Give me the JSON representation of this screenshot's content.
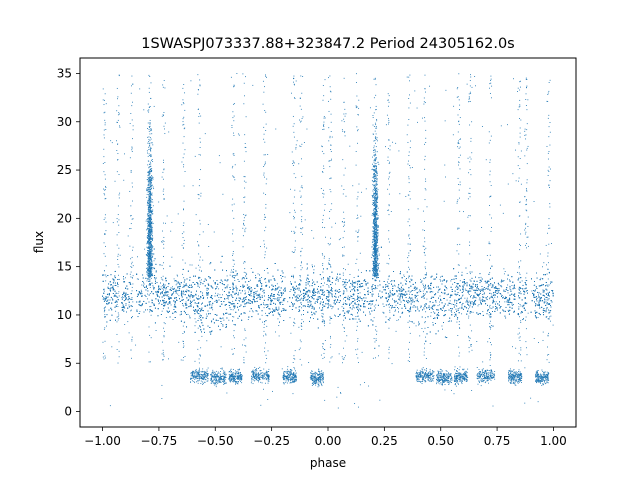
{
  "chart_data": {
    "type": "scatter",
    "title": "1SWASPJ073337.88+323847.2 Period 24305162.0s",
    "xlabel": "phase",
    "ylabel": "flux",
    "xlim": [
      -1.1,
      1.1
    ],
    "ylim": [
      -1.6,
      36.6
    ],
    "xticks": [
      -1.0,
      -0.75,
      -0.5,
      -0.25,
      0.0,
      0.25,
      0.5,
      0.75,
      1.0
    ],
    "xtick_labels": [
      "−1.00",
      "−0.75",
      "−0.50",
      "−0.25",
      "0.00",
      "0.25",
      "0.50",
      "0.75",
      "1.00"
    ],
    "yticks": [
      0,
      5,
      10,
      15,
      20,
      25,
      30,
      35
    ],
    "ytick_labels": [
      "0",
      "5",
      "10",
      "15",
      "20",
      "25",
      "30",
      "35"
    ],
    "grid": false,
    "legend": "none",
    "point_color": "#1f77b4",
    "series": [
      {
        "description_values": "phase-folded light curve, main band",
        "band_center": 12.0,
        "band_halfwidth": 2.0,
        "x_range": [
          -1.0,
          1.0
        ]
      }
    ],
    "sample_points": {
      "x": [
        -0.99,
        -0.95,
        -0.9,
        -0.85,
        -0.8,
        -0.79,
        -0.75,
        -0.7,
        -0.65,
        -0.6,
        -0.55,
        -0.5,
        -0.45,
        -0.4,
        -0.35,
        -0.3,
        -0.25,
        -0.2,
        -0.15,
        -0.1,
        -0.05,
        0.0,
        0.05,
        0.1,
        0.15,
        0.2,
        0.21,
        0.25,
        0.3,
        0.35,
        0.4,
        0.45,
        0.5,
        0.55,
        0.6,
        0.65,
        0.7,
        0.75,
        0.8,
        0.85,
        0.9,
        0.95,
        0.98
      ],
      "y": [
        11.5,
        12.0,
        11.2,
        12.5,
        20.0,
        27.0,
        13.5,
        12.8,
        12.4,
        12.0,
        11.6,
        11.0,
        11.8,
        12.2,
        12.6,
        12.0,
        12.2,
        11.8,
        12.4,
        12.1,
        11.9,
        11.0,
        12.3,
        12.0,
        12.5,
        20.5,
        27.5,
        13.2,
        12.6,
        12.3,
        12.0,
        11.4,
        11.0,
        11.6,
        12.1,
        12.3,
        12.5,
        12.0,
        12.3,
        12.0,
        12.1,
        12.5,
        12.2
      ]
    },
    "low_clusters": [
      {
        "x_range": [
          -0.61,
          -0.53
        ],
        "y_center": 3.7
      },
      {
        "x_range": [
          -0.52,
          -0.45
        ],
        "y_center": 3.5
      },
      {
        "x_range": [
          -0.44,
          -0.38
        ],
        "y_center": 3.6
      },
      {
        "x_range": [
          -0.34,
          -0.26
        ],
        "y_center": 3.7
      },
      {
        "x_range": [
          -0.2,
          -0.14
        ],
        "y_center": 3.6
      },
      {
        "x_range": [
          -0.08,
          -0.02
        ],
        "y_center": 3.5
      },
      {
        "x_range": [
          0.39,
          0.47
        ],
        "y_center": 3.7
      },
      {
        "x_range": [
          0.48,
          0.55
        ],
        "y_center": 3.5
      },
      {
        "x_range": [
          0.56,
          0.62
        ],
        "y_center": 3.6
      },
      {
        "x_range": [
          0.66,
          0.74
        ],
        "y_center": 3.7
      },
      {
        "x_range": [
          0.8,
          0.86
        ],
        "y_center": 3.6
      },
      {
        "x_range": [
          0.92,
          0.98
        ],
        "y_center": 3.5
      }
    ],
    "spikes_x": [
      -0.99,
      -0.93,
      -0.87,
      -0.79,
      -0.73,
      -0.64,
      -0.57,
      -0.42,
      -0.37,
      -0.28,
      -0.15,
      -0.12,
      -0.02,
      0.01,
      0.07,
      0.13,
      0.21,
      0.27,
      0.36,
      0.43,
      0.58,
      0.63,
      0.72,
      0.85,
      0.88,
      0.98
    ]
  }
}
